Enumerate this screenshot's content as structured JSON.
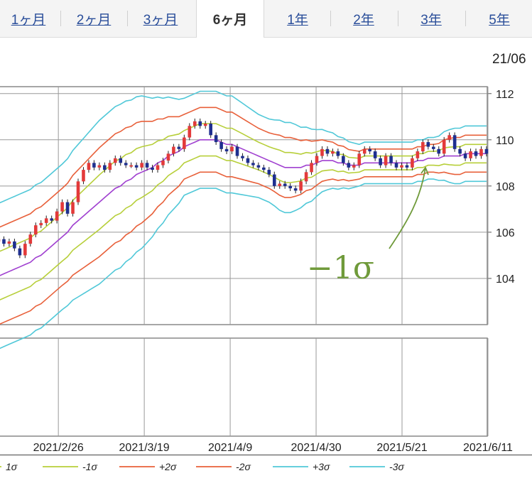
{
  "tabs": [
    {
      "label": "1ヶ月",
      "active": false
    },
    {
      "label": "2ヶ月",
      "active": false
    },
    {
      "label": "3ヶ月",
      "active": false
    },
    {
      "label": "6ヶ月",
      "active": true
    },
    {
      "label": "1年",
      "active": false
    },
    {
      "label": "2年",
      "active": false
    },
    {
      "label": "3年",
      "active": false
    },
    {
      "label": "5年",
      "active": false
    }
  ],
  "header": {
    "date_label": "21/06"
  },
  "annotation": {
    "text": "−1σ",
    "color": "#6f9a3a"
  },
  "colors": {
    "up_candle": "#e33a3a",
    "down_candle": "#1e2f8f",
    "mid": "#a040d0",
    "sigma1": "#b7cf3a",
    "sigma2": "#e8603a",
    "sigma3": "#50c8d8",
    "grid": "#999999"
  },
  "chart_data": {
    "type": "candlestick_bollinger",
    "ylim": [
      102,
      112.3
    ],
    "yticks": [
      104,
      106,
      108,
      110,
      112
    ],
    "xticks": [
      "2021/2/26",
      "2021/3/19",
      "2021/4/9",
      "2021/4/30",
      "2021/5/21",
      "2021/6/11"
    ],
    "x_start_date": "2021-02-10",
    "legend": [
      {
        "label": "1σ",
        "color_key": "sigma1"
      },
      {
        "label": "-1σ",
        "color_key": "sigma1"
      },
      {
        "label": "+2σ",
        "color_key": "sigma2"
      },
      {
        "label": "-2σ",
        "color_key": "sigma2"
      },
      {
        "label": "+3σ",
        "color_key": "sigma3"
      },
      {
        "label": "-3σ",
        "color_key": "sigma3"
      }
    ],
    "closes": [
      105.7,
      105.5,
      105.6,
      105.3,
      105.0,
      105.5,
      105.9,
      106.3,
      106.4,
      106.6,
      106.5,
      106.9,
      107.3,
      106.8,
      107.3,
      108.2,
      108.7,
      109.0,
      108.8,
      108.9,
      108.7,
      109.0,
      109.2,
      109.0,
      108.9,
      108.9,
      108.8,
      109.0,
      108.8,
      108.7,
      108.9,
      109.1,
      109.4,
      109.7,
      109.6,
      110.1,
      110.6,
      110.8,
      110.6,
      110.7,
      110.2,
      109.9,
      109.6,
      109.5,
      109.7,
      109.3,
      109.2,
      109.0,
      108.9,
      108.8,
      108.7,
      108.5,
      108.0,
      108.1,
      108.0,
      107.9,
      107.8,
      108.2,
      108.6,
      109.0,
      109.3,
      109.6,
      109.4,
      109.5,
      109.3,
      109.0,
      108.8,
      108.9,
      109.4,
      109.6,
      109.5,
      109.2,
      108.9,
      109.3,
      109.0,
      108.8,
      108.9,
      108.8,
      109.2,
      109.5,
      109.9,
      109.7,
      109.6,
      109.4,
      110.0,
      110.2,
      109.6,
      109.4,
      109.2,
      109.5,
      109.3,
      109.6,
      109.4
    ],
    "sma": [
      104.1,
      104.2,
      104.3,
      104.4,
      104.5,
      104.6,
      104.7,
      104.9,
      105.0,
      105.2,
      105.4,
      105.6,
      105.8,
      106.0,
      106.3,
      106.5,
      106.7,
      106.9,
      107.1,
      107.3,
      107.5,
      107.7,
      107.9,
      108.0,
      108.2,
      108.3,
      108.5,
      108.6,
      108.7,
      108.8,
      109.0,
      109.1,
      109.3,
      109.4,
      109.5,
      109.7,
      109.8,
      109.9,
      110.0,
      110.0,
      110.0,
      110.0,
      109.9,
      109.8,
      109.8,
      109.7,
      109.6,
      109.5,
      109.4,
      109.3,
      109.2,
      109.1,
      109.0,
      108.9,
      108.8,
      108.8,
      108.8,
      108.8,
      108.9,
      108.9,
      109.0,
      109.1,
      109.1,
      109.1,
      109.0,
      109.0,
      108.9,
      108.9,
      108.9,
      109.0,
      109.0,
      109.0,
      109.0,
      109.0,
      109.0,
      109.0,
      109.0,
      109.0,
      109.0,
      109.1,
      109.1,
      109.2,
      109.2,
      109.2,
      109.3,
      109.3,
      109.3,
      109.3,
      109.4,
      109.4,
      109.4,
      109.4,
      109.4
    ],
    "sigma": [
      1.05,
      1.05,
      1.05,
      1.05,
      1.05,
      1.05,
      1.05,
      1.05,
      1.05,
      1.05,
      1.05,
      1.05,
      1.05,
      1.06,
      1.08,
      1.1,
      1.12,
      1.14,
      1.16,
      1.18,
      1.18,
      1.18,
      1.18,
      1.18,
      1.16,
      1.14,
      1.12,
      1.1,
      1.05,
      1.0,
      0.95,
      0.9,
      0.85,
      0.8,
      0.75,
      0.7,
      0.7,
      0.7,
      0.7,
      0.7,
      0.7,
      0.7,
      0.7,
      0.7,
      0.7,
      0.68,
      0.66,
      0.64,
      0.62,
      0.6,
      0.6,
      0.6,
      0.62,
      0.65,
      0.65,
      0.65,
      0.62,
      0.58,
      0.55,
      0.52,
      0.48,
      0.45,
      0.42,
      0.4,
      0.38,
      0.36,
      0.34,
      0.32,
      0.3,
      0.3,
      0.3,
      0.3,
      0.3,
      0.3,
      0.3,
      0.3,
      0.3,
      0.3,
      0.3,
      0.3,
      0.3,
      0.3,
      0.3,
      0.32,
      0.35,
      0.38,
      0.4,
      0.4,
      0.4,
      0.4,
      0.4,
      0.4,
      0.4
    ]
  }
}
